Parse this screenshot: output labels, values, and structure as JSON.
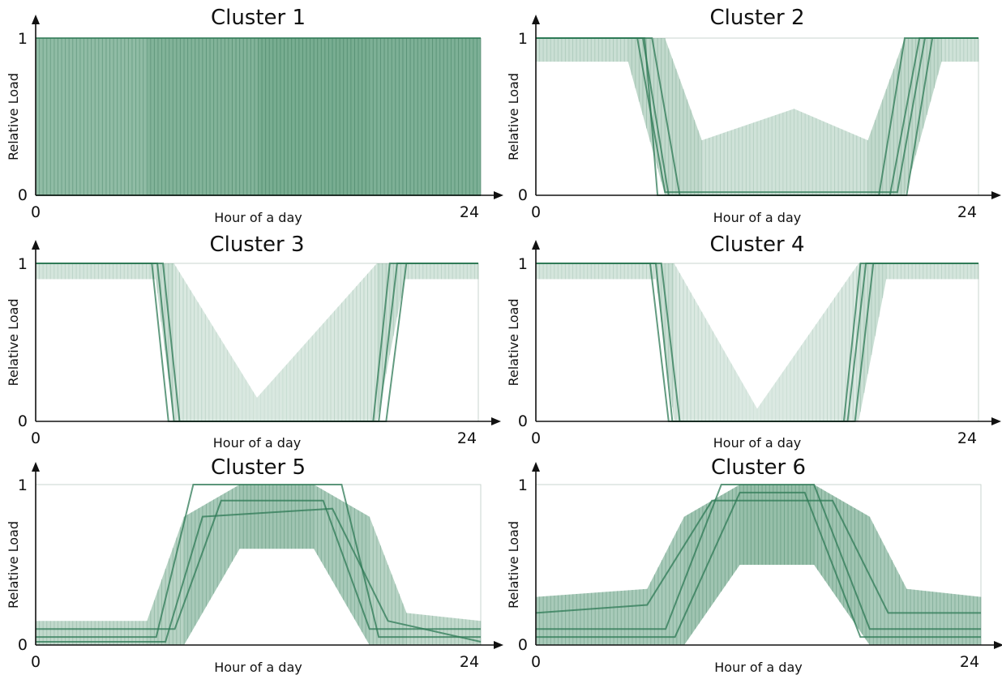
{
  "figure": {
    "accent_color": "#3f8a63",
    "axis_color": "#111111"
  },
  "chart_data": [
    {
      "type": "line",
      "title": "Cluster 1",
      "xlabel": "Hour of a day",
      "ylabel": "Relative Load",
      "xlim": [
        0,
        24
      ],
      "ylim": [
        0,
        1
      ],
      "x_ticks": [
        "0",
        "24"
      ],
      "y_ticks": [
        "0",
        "1"
      ],
      "grid": false,
      "legend": "none",
      "pattern": "on-off all day",
      "density": [
        {
          "x": 0,
          "y0": 0,
          "y1": 1,
          "a": 0.55
        },
        {
          "x": 6,
          "y0": 0,
          "y1": 1,
          "a": 0.6
        },
        {
          "x": 12,
          "y0": 0,
          "y1": 1,
          "a": 0.7
        },
        {
          "x": 18,
          "y0": 0,
          "y1": 1,
          "a": 0.7
        },
        {
          "x": 24,
          "y0": 0,
          "y1": 1,
          "a": 0.65
        }
      ],
      "series": [
        {
          "x": [
            0,
            24
          ],
          "y": [
            1,
            1
          ]
        },
        {
          "x": [
            0,
            24
          ],
          "y": [
            0,
            0
          ]
        }
      ]
    },
    {
      "type": "line",
      "title": "Cluster 2",
      "xlabel": "Hour of a day",
      "ylabel": "Relative Load",
      "xlim": [
        0,
        24
      ],
      "ylim": [
        0,
        1
      ],
      "x_ticks": [
        "0",
        "24"
      ],
      "y_ticks": [
        "0",
        "1"
      ],
      "grid": false,
      "legend": "none",
      "pattern": "on at night, off during day",
      "density": [
        {
          "x": 0,
          "y0": 0.85,
          "y1": 1,
          "a": 0.25
        },
        {
          "x": 5,
          "y0": 0.85,
          "y1": 1,
          "a": 0.3
        },
        {
          "x": 7,
          "y0": 0,
          "y1": 1,
          "a": 0.35
        },
        {
          "x": 9,
          "y0": 0,
          "y1": 0.35,
          "a": 0.3
        },
        {
          "x": 14,
          "y0": 0,
          "y1": 0.55,
          "a": 0.2
        },
        {
          "x": 18,
          "y0": 0,
          "y1": 0.35,
          "a": 0.3
        },
        {
          "x": 20,
          "y0": 0,
          "y1": 1,
          "a": 0.35
        },
        {
          "x": 22,
          "y0": 0.85,
          "y1": 1,
          "a": 0.3
        },
        {
          "x": 24,
          "y0": 0.85,
          "y1": 1,
          "a": 0.2
        }
      ],
      "series": [
        {
          "x": [
            0,
            5.8,
            7.2,
            18.6,
            20.0,
            24
          ],
          "y": [
            1,
            1,
            0,
            0,
            1,
            1
          ]
        },
        {
          "x": [
            0,
            6.3,
            7.8,
            19.2,
            20.8,
            24
          ],
          "y": [
            1,
            1,
            0,
            0,
            1,
            1
          ]
        },
        {
          "x": [
            0,
            5.5,
            7.0,
            19.6,
            21.1,
            24
          ],
          "y": [
            1,
            1,
            0.02,
            0.02,
            1,
            1
          ]
        },
        {
          "x": [
            0,
            5.9,
            6.6,
            20.1,
            21.5,
            24
          ],
          "y": [
            1,
            1,
            0,
            0,
            1,
            1
          ]
        }
      ]
    },
    {
      "type": "line",
      "title": "Cluster 3",
      "xlabel": "Hour of a day",
      "ylabel": "Relative Load",
      "xlim": [
        0,
        24
      ],
      "ylim": [
        0,
        1
      ],
      "x_ticks": [
        "0",
        "24"
      ],
      "y_ticks": [
        "0",
        "1"
      ],
      "grid": false,
      "legend": "none",
      "pattern": "on at night, off during day",
      "density": [
        {
          "x": 0,
          "y0": 0.9,
          "y1": 1,
          "a": 0.2
        },
        {
          "x": 6.5,
          "y0": 0.9,
          "y1": 1,
          "a": 0.25
        },
        {
          "x": 7.5,
          "y0": 0,
          "y1": 1,
          "a": 0.3
        },
        {
          "x": 12,
          "y0": 0,
          "y1": 0.15,
          "a": 0.1
        },
        {
          "x": 18.5,
          "y0": 0,
          "y1": 1,
          "a": 0.3
        },
        {
          "x": 20,
          "y0": 0.9,
          "y1": 1,
          "a": 0.25
        },
        {
          "x": 24,
          "y0": 0.9,
          "y1": 1,
          "a": 0.2
        }
      ],
      "series": [
        {
          "x": [
            0,
            6.6,
            7.5,
            18.6,
            19.6,
            24
          ],
          "y": [
            1,
            1,
            0,
            0,
            1,
            1
          ]
        },
        {
          "x": [
            0,
            6.9,
            7.8,
            19.0,
            20.1,
            24
          ],
          "y": [
            1,
            1,
            0,
            0,
            1,
            1
          ]
        },
        {
          "x": [
            0,
            6.3,
            7.2,
            18.3,
            19.2,
            24
          ],
          "y": [
            1,
            1,
            0,
            0,
            1,
            1
          ]
        }
      ]
    },
    {
      "type": "line",
      "title": "Cluster 4",
      "xlabel": "Hour of a day",
      "ylabel": "Relative Load",
      "xlim": [
        0,
        24
      ],
      "ylim": [
        0,
        1
      ],
      "x_ticks": [
        "0",
        "24"
      ],
      "y_ticks": [
        "0",
        "1"
      ],
      "grid": false,
      "legend": "none",
      "pattern": "on at night, off during day",
      "density": [
        {
          "x": 0,
          "y0": 0.9,
          "y1": 1,
          "a": 0.2
        },
        {
          "x": 6.5,
          "y0": 0.9,
          "y1": 1,
          "a": 0.25
        },
        {
          "x": 7.5,
          "y0": 0,
          "y1": 1,
          "a": 0.3
        },
        {
          "x": 12,
          "y0": 0,
          "y1": 0.08,
          "a": 0.08
        },
        {
          "x": 17.5,
          "y0": 0,
          "y1": 1,
          "a": 0.3
        },
        {
          "x": 19,
          "y0": 0.9,
          "y1": 1,
          "a": 0.25
        },
        {
          "x": 24,
          "y0": 0.9,
          "y1": 1,
          "a": 0.2
        }
      ],
      "series": [
        {
          "x": [
            0,
            6.5,
            7.4,
            16.9,
            17.9,
            24
          ],
          "y": [
            1,
            1,
            0,
            0,
            1,
            1
          ]
        },
        {
          "x": [
            0,
            6.8,
            7.8,
            17.3,
            18.3,
            24
          ],
          "y": [
            1,
            1,
            0,
            0,
            1,
            1
          ]
        },
        {
          "x": [
            0,
            6.2,
            7.2,
            16.7,
            17.6,
            24
          ],
          "y": [
            1,
            1,
            0,
            0,
            1,
            1
          ]
        }
      ]
    },
    {
      "type": "line",
      "title": "Cluster 5",
      "xlabel": "Hour of a day",
      "ylabel": "Relative Load",
      "xlim": [
        0,
        24
      ],
      "ylim": [
        0,
        1
      ],
      "x_ticks": [
        "0",
        "24"
      ],
      "y_ticks": [
        "0",
        "1"
      ],
      "grid": false,
      "legend": "none",
      "pattern": "low at night, high during day",
      "density": [
        {
          "x": 0,
          "y0": 0,
          "y1": 0.15,
          "a": 0.3
        },
        {
          "x": 6,
          "y0": 0,
          "y1": 0.15,
          "a": 0.35
        },
        {
          "x": 8,
          "y0": 0,
          "y1": 0.8,
          "a": 0.4
        },
        {
          "x": 11,
          "y0": 0.6,
          "y1": 1,
          "a": 0.5
        },
        {
          "x": 15,
          "y0": 0.6,
          "y1": 1,
          "a": 0.5
        },
        {
          "x": 18,
          "y0": 0,
          "y1": 0.8,
          "a": 0.4
        },
        {
          "x": 20,
          "y0": 0,
          "y1": 0.2,
          "a": 0.35
        },
        {
          "x": 24,
          "y0": 0,
          "y1": 0.15,
          "a": 0.3
        }
      ],
      "series": [
        {
          "x": [
            0,
            6.5,
            8.5,
            16.5,
            18.5,
            24
          ],
          "y": [
            0.05,
            0.05,
            1,
            1,
            0.05,
            0.05
          ]
        },
        {
          "x": [
            0,
            7.5,
            10.0,
            15.5,
            18.0,
            24
          ],
          "y": [
            0.1,
            0.1,
            0.9,
            0.9,
            0.1,
            0.1
          ]
        },
        {
          "x": [
            0,
            7.0,
            9.0,
            16.0,
            19.0,
            24
          ],
          "y": [
            0.02,
            0.02,
            0.8,
            0.85,
            0.15,
            0.02
          ]
        }
      ]
    },
    {
      "type": "line",
      "title": "Cluster 6",
      "xlabel": "Hour of a day",
      "ylabel": "Relative Load",
      "xlim": [
        0,
        24
      ],
      "ylim": [
        0,
        1
      ],
      "x_ticks": [
        "0",
        "24"
      ],
      "y_ticks": [
        "0",
        "1"
      ],
      "grid": false,
      "legend": "none",
      "pattern": "low at night, high during day",
      "density": [
        {
          "x": 0,
          "y0": 0,
          "y1": 0.3,
          "a": 0.45
        },
        {
          "x": 6,
          "y0": 0,
          "y1": 0.35,
          "a": 0.45
        },
        {
          "x": 8,
          "y0": 0,
          "y1": 0.8,
          "a": 0.45
        },
        {
          "x": 11,
          "y0": 0.5,
          "y1": 1,
          "a": 0.55
        },
        {
          "x": 15,
          "y0": 0.5,
          "y1": 1,
          "a": 0.55
        },
        {
          "x": 18,
          "y0": 0,
          "y1": 0.8,
          "a": 0.45
        },
        {
          "x": 20,
          "y0": 0,
          "y1": 0.35,
          "a": 0.45
        },
        {
          "x": 24,
          "y0": 0,
          "y1": 0.3,
          "a": 0.45
        }
      ],
      "series": [
        {
          "x": [
            0,
            7,
            10,
            15,
            18,
            24
          ],
          "y": [
            0.1,
            0.1,
            1,
            1,
            0.1,
            0.1
          ]
        },
        {
          "x": [
            0,
            6,
            9.5,
            16,
            19,
            24
          ],
          "y": [
            0.2,
            0.25,
            0.9,
            0.9,
            0.2,
            0.2
          ]
        },
        {
          "x": [
            0,
            7.5,
            11,
            14.5,
            17.5,
            24
          ],
          "y": [
            0.05,
            0.05,
            0.95,
            0.95,
            0.05,
            0.05
          ]
        }
      ]
    }
  ]
}
